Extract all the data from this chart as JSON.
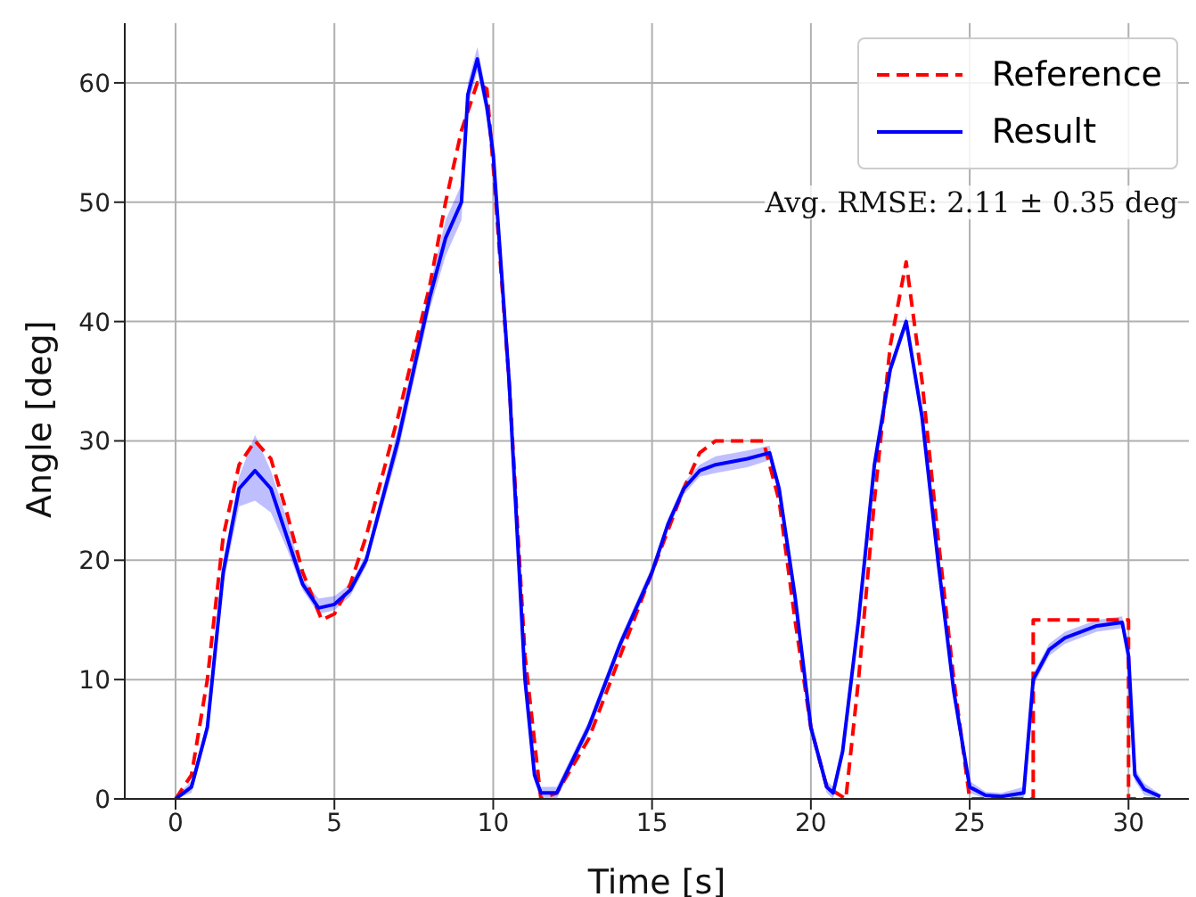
{
  "chart_data": {
    "type": "line",
    "xlabel": "Time [s]",
    "ylabel": "Angle [deg]",
    "xlim": [
      -1.6,
      31.9
    ],
    "ylim": [
      0,
      65
    ],
    "xticks": [
      0,
      5,
      10,
      15,
      20,
      25,
      30
    ],
    "yticks": [
      0,
      10,
      20,
      30,
      40,
      50,
      60
    ],
    "grid": true,
    "legend": "top right",
    "marker": "none",
    "annotations": [
      "Avg. RMSE: 2.11 ± 0.35 deg"
    ],
    "series": [
      {
        "name": "Reference",
        "color": "#ff0000",
        "line_style": "dashed",
        "x": [
          0,
          0.5,
          1,
          1.5,
          2,
          2.5,
          3,
          3.5,
          4,
          4.6,
          5,
          5.5,
          6,
          7,
          8,
          8.5,
          9,
          9.5,
          9.8,
          10,
          10.5,
          11,
          11.5,
          12,
          13,
          14,
          15,
          16,
          16.5,
          17,
          18,
          18.5,
          19,
          19.5,
          20,
          20.5,
          21.1,
          21.5,
          22,
          22.5,
          23,
          23.5,
          24,
          24.5,
          25,
          27,
          27,
          30,
          30,
          31
        ],
        "values": [
          0,
          2,
          10,
          22,
          28,
          30,
          28.5,
          24,
          19,
          15,
          15.5,
          18,
          22,
          32,
          43,
          50,
          56,
          60,
          59.5,
          53,
          35,
          12,
          0,
          0.5,
          5,
          12,
          19,
          26,
          29,
          30,
          30,
          30,
          25,
          15,
          6,
          1,
          0,
          10,
          25,
          38,
          45,
          35,
          22,
          10,
          0,
          0,
          15,
          15,
          0,
          0
        ]
      },
      {
        "name": "Result",
        "color": "#0000ff",
        "line_style": "solid",
        "x": [
          0,
          0.5,
          1,
          1.5,
          2,
          2.5,
          3,
          3.5,
          4,
          4.5,
          5,
          5.5,
          6,
          7,
          8,
          8.5,
          9,
          9.2,
          9.5,
          9.8,
          10,
          10.5,
          11,
          11.3,
          11.5,
          12,
          13,
          14,
          15,
          15.5,
          16,
          16.5,
          17,
          18,
          18.7,
          19,
          19.5,
          20,
          20.5,
          20.7,
          21,
          21.5,
          22,
          22.5,
          23,
          23.5,
          24,
          24.5,
          25,
          25.5,
          26,
          26.7,
          27,
          27.5,
          28,
          28.5,
          29,
          29.8,
          30,
          30.2,
          30.5,
          31
        ],
        "values": [
          0,
          1,
          6,
          19,
          26,
          27.5,
          26,
          22,
          18,
          16,
          16.3,
          17.5,
          20,
          30,
          42,
          47,
          50,
          59,
          62,
          58,
          54,
          35,
          10,
          2,
          0.5,
          0.5,
          6,
          13,
          19,
          23,
          26,
          27.5,
          28,
          28.5,
          29,
          26,
          17,
          6,
          1,
          0.5,
          4,
          15,
          28,
          36,
          40,
          32,
          20,
          9,
          1,
          0.3,
          0.2,
          0.5,
          10,
          12.5,
          13.5,
          14,
          14.5,
          14.8,
          12,
          2,
          0.8,
          0.2
        ],
        "lower": [
          0,
          0.5,
          5.5,
          18,
          24.5,
          25,
          24,
          21,
          17.5,
          15.5,
          15.8,
          17,
          19.5,
          29,
          41,
          45.5,
          48.5,
          58,
          61,
          57,
          53.5,
          34.5,
          9.5,
          1.5,
          0,
          0,
          5.5,
          12.5,
          18.5,
          22.5,
          25.5,
          27,
          27.3,
          27.8,
          28.4,
          25.5,
          16.5,
          5.5,
          0.5,
          0,
          3.5,
          14.5,
          27.5,
          35.5,
          39.5,
          31.5,
          19.5,
          8.5,
          0.5,
          0,
          0,
          0,
          9.5,
          12,
          13,
          13.5,
          14,
          14.3,
          11.5,
          1.5,
          0.3,
          0
        ],
        "upper": [
          0.2,
          1.5,
          6.5,
          20,
          27,
          30.5,
          27.5,
          23.5,
          18.5,
          16.8,
          17,
          18,
          20.5,
          31,
          43,
          48.5,
          51.5,
          60,
          63,
          59,
          54.5,
          35.5,
          10.5,
          2.5,
          1,
          1,
          6.5,
          13.5,
          19.5,
          23.5,
          26.5,
          28,
          28.7,
          29.2,
          29.6,
          26.5,
          17.5,
          6.5,
          1.5,
          1,
          4.5,
          15.5,
          28.5,
          36.5,
          40.5,
          32.5,
          20.5,
          9.5,
          1.5,
          0.6,
          0.5,
          1,
          10.5,
          13,
          14,
          14.5,
          15,
          15.3,
          12.5,
          2.5,
          1.3,
          0.4
        ]
      }
    ]
  }
}
